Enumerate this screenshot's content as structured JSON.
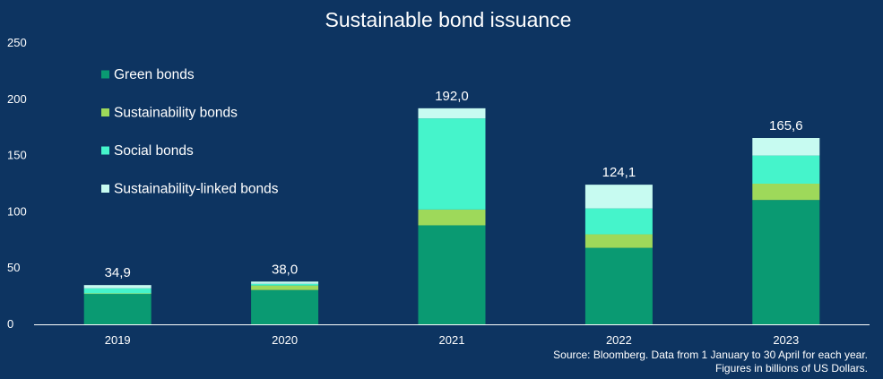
{
  "chart_data": {
    "type": "bar",
    "stacked": true,
    "title": "Sustainable bond issuance",
    "categories": [
      "2019",
      "2020",
      "2021",
      "2022",
      "2023"
    ],
    "series": [
      {
        "name": "Green bonds",
        "color": "#0a9a72",
        "values": [
          27.0,
          30.5,
          88.0,
          68.0,
          110.5
        ]
      },
      {
        "name": "Sustainability bonds",
        "color": "#9ed95a",
        "values": [
          0.5,
          4.0,
          14.0,
          12.0,
          14.5
        ]
      },
      {
        "name": "Social bonds",
        "color": "#45f4cb",
        "values": [
          4.5,
          1.5,
          81.0,
          23.0,
          25.0
        ]
      },
      {
        "name": "Sustainability-linked bonds",
        "color": "#c7fbf1",
        "values": [
          2.9,
          2.0,
          9.0,
          21.1,
          15.6
        ]
      }
    ],
    "totals": [
      "34,9",
      "38,0",
      "192,0",
      "124,1",
      "165,6"
    ],
    "ylim": [
      0,
      250
    ],
    "yticks": [
      0,
      50,
      100,
      150,
      200,
      250
    ],
    "grid": false,
    "legend_position": "top-left",
    "xlabel": "",
    "ylabel": ""
  },
  "source_line1": "Source: Bloomberg. Data from 1 January to 30 April for each year.",
  "source_line2": "Figures in billions of US Dollars.",
  "colors": {
    "background": "#0d3461",
    "text": "#ffffff",
    "axis": "#ffffff"
  }
}
